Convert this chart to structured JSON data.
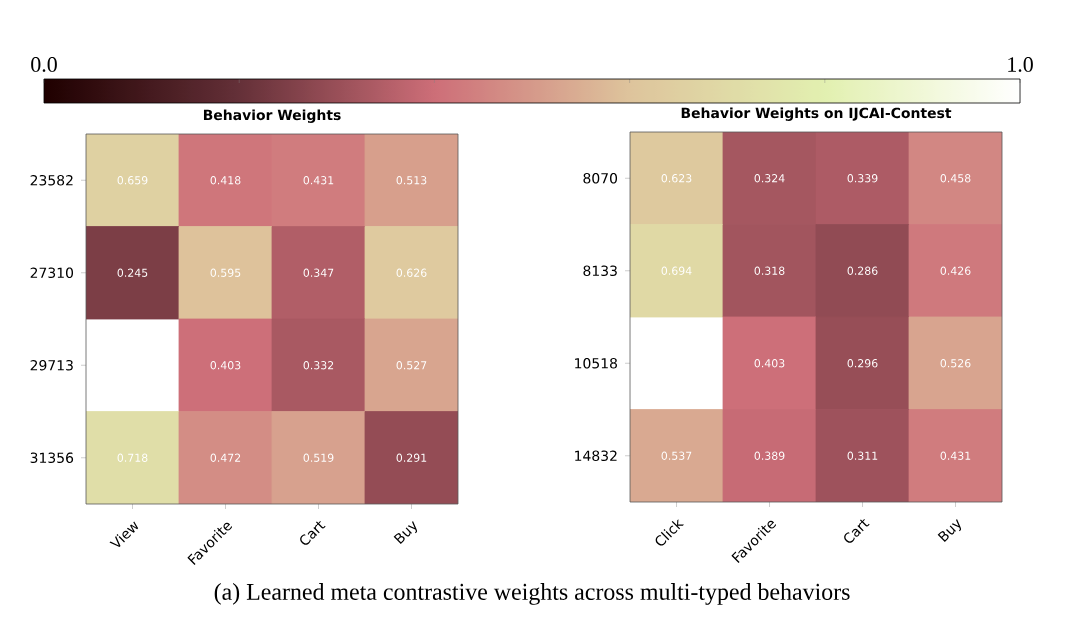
{
  "chart_data": [
    {
      "type": "heatmap",
      "title": "Behavior Weights",
      "categories": [
        "View",
        "Favorite",
        "Cart",
        "Buy"
      ],
      "y_categories": [
        "23582",
        "27310",
        "29713",
        "31356"
      ],
      "cells": [
        [
          0.659,
          0.418,
          0.431,
          0.513
        ],
        [
          0.245,
          0.595,
          0.347,
          0.626
        ],
        [
          null,
          0.403,
          0.332,
          0.527
        ],
        [
          0.718,
          0.472,
          0.519,
          0.291
        ]
      ],
      "data_labels": true,
      "clim": [
        0,
        1
      ],
      "cticks": [
        {
          "value": 0,
          "label": "0.0"
        },
        {
          "value": 0.2,
          "label": null
        },
        {
          "value": 0.4,
          "label": null
        },
        {
          "value": 0.6,
          "label": null
        },
        {
          "value": 0.8,
          "label": null
        },
        {
          "value": 1,
          "label": "1.0"
        }
      ],
      "annotations": [
        "(a) Learned meta contrastive weights across multi-typed behaviors"
      ]
    },
    {
      "type": "heatmap",
      "title": "Behavior Weights on IJCAI-Contest",
      "categories": [
        "Click",
        "Favorite",
        "Cart",
        "Buy"
      ],
      "y_categories": [
        "8070",
        "8133",
        "10518",
        "14832"
      ],
      "cells": [
        [
          0.623,
          0.324,
          0.339,
          0.458
        ],
        [
          0.694,
          0.318,
          0.286,
          0.426
        ],
        [
          null,
          0.403,
          0.296,
          0.526
        ],
        [
          0.537,
          0.389,
          0.311,
          0.431
        ]
      ],
      "data_labels": true
    }
  ]
}
